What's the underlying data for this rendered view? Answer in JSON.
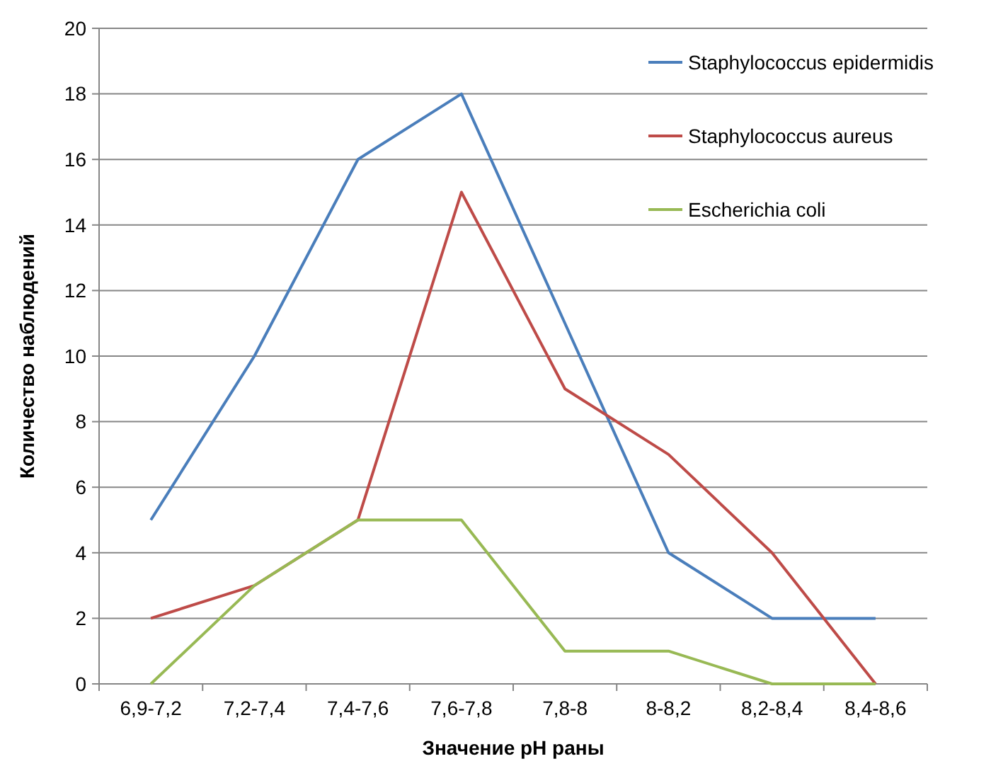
{
  "chart_data": {
    "type": "line",
    "xlabel": "Значение pH раны",
    "ylabel": "Количество наблюдений",
    "categories": [
      "6,9-7,2",
      "7,2-7,4",
      "7,4-7,6",
      "7,6-7,8",
      "7,8-8",
      "8-8,2",
      "8,2-8,4",
      "8,4-8,6"
    ],
    "series": [
      {
        "name": "Staphylococcus epidermidis",
        "color": "#4a7ebb",
        "values": [
          5,
          10,
          16,
          18,
          11,
          4,
          2,
          2
        ]
      },
      {
        "name": "Staphylococcus aureus",
        "color": "#be4b48",
        "values": [
          2,
          3,
          5,
          15,
          9,
          7,
          4,
          0
        ]
      },
      {
        "name": "Escherichia coli",
        "color": "#98b954",
        "values": [
          0,
          3,
          5,
          5,
          1,
          1,
          0,
          0
        ]
      }
    ],
    "ylim": [
      0,
      20
    ],
    "yticks": [
      0,
      2,
      4,
      6,
      8,
      10,
      12,
      14,
      16,
      18,
      20
    ],
    "grid": "y",
    "legend": "top right",
    "marker": "none",
    "line_style": "solid"
  }
}
